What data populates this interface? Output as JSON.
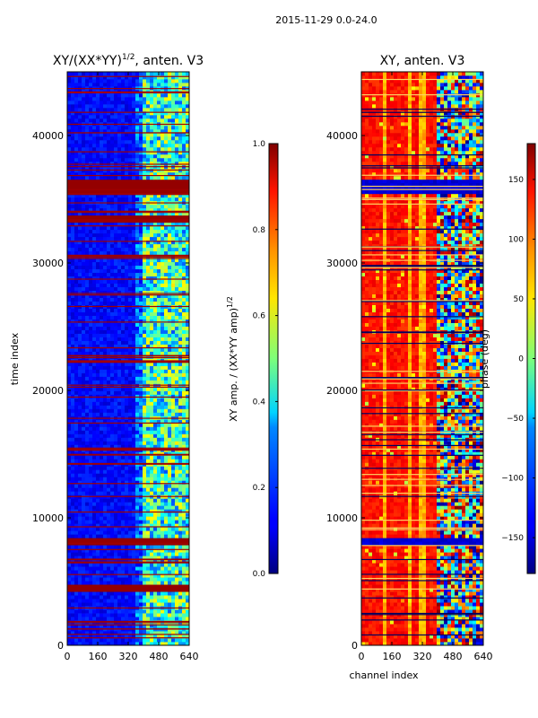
{
  "figure": {
    "suptitle": "2015-11-29 0.0-24.0"
  },
  "chart_data": [
    {
      "type": "heatmap",
      "title_base": "XY/(XX*YY)",
      "title_exponent": "1/2",
      "title_suffix": ", anten. V3",
      "xlabel": "",
      "ylabel": "time index",
      "xlim": [
        0,
        640
      ],
      "ylim": [
        0,
        45000
      ],
      "xticks": [
        0,
        160,
        320,
        480,
        640
      ],
      "yticks": [
        0,
        10000,
        20000,
        30000,
        40000
      ],
      "xtick_labels": [
        "0",
        "160",
        "320",
        "480",
        "640"
      ],
      "ytick_labels": [
        "0",
        "10000",
        "20000",
        "30000",
        "40000"
      ],
      "colormap": "jet",
      "colorbar": {
        "label_base": "XY amp. / (XX*YY amp)",
        "label_exponent": "1/2",
        "range": [
          0.0,
          1.0
        ],
        "ticks": [
          0.0,
          0.2,
          0.4,
          0.6,
          0.8,
          1.0
        ],
        "tick_labels": [
          "0.0",
          "0.2",
          "0.4",
          "0.6",
          "0.8",
          "1.0"
        ]
      },
      "description": "Mostly low (~0.1) values below channel ~350, noisy mid values (0.3-0.6) above; full-saturation (1.0) rows near time 36000, 33500, 8200 and 4000-4700"
    },
    {
      "type": "heatmap",
      "title": "XY, anten. V3",
      "xlabel": "channel index",
      "ylabel": "",
      "xlim": [
        0,
        640
      ],
      "ylim": [
        0,
        45000
      ],
      "xticks": [
        0,
        160,
        320,
        480,
        640
      ],
      "yticks": [
        0,
        10000,
        20000,
        30000,
        40000
      ],
      "xtick_labels": [
        "0",
        "160",
        "320",
        "480",
        "640"
      ],
      "ytick_labels": [
        "0",
        "10000",
        "20000",
        "30000",
        "40000"
      ],
      "colormap": "jet",
      "colorbar": {
        "label": "phase (deg)",
        "range": [
          -180,
          180
        ],
        "ticks": [
          -150,
          -100,
          -50,
          0,
          50,
          100,
          150
        ],
        "tick_labels": [
          "−150",
          "−100",
          "−50",
          "0",
          "50",
          "100",
          "150"
        ]
      },
      "description": "Phase mostly ~100-150 deg (orange/red) with lighter vertical bands; blue rows near time 36000 and 8200; noisy region above channel ~400"
    }
  ]
}
